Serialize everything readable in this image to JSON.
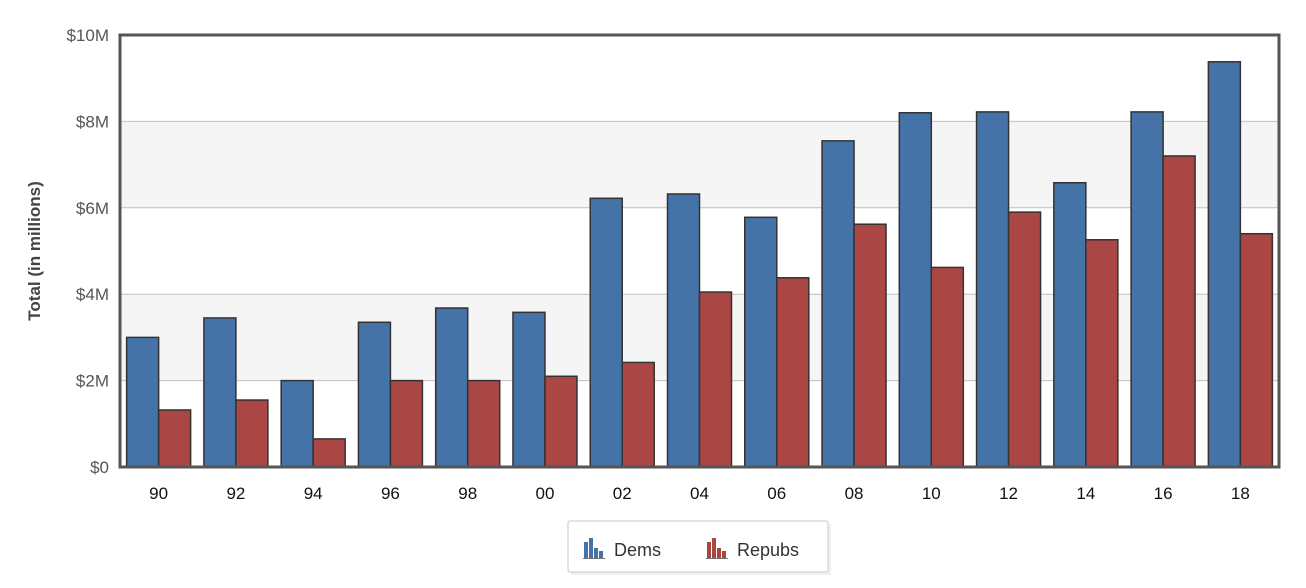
{
  "chart_data": {
    "type": "bar",
    "title": "",
    "xlabel": "",
    "ylabel": "Total (in millions)",
    "categories": [
      "90",
      "92",
      "94",
      "96",
      "98",
      "00",
      "02",
      "04",
      "06",
      "08",
      "10",
      "12",
      "14",
      "16",
      "18"
    ],
    "series": [
      {
        "name": "Dems",
        "color": "#4572a7",
        "values": [
          3.0,
          3.45,
          2.0,
          3.35,
          3.68,
          3.58,
          6.22,
          6.32,
          5.78,
          7.55,
          8.2,
          8.22,
          6.58,
          8.22,
          9.38
        ]
      },
      {
        "name": "Repubs",
        "color": "#aa4643",
        "values": [
          1.32,
          1.55,
          0.65,
          2.0,
          2.0,
          2.1,
          2.42,
          4.05,
          4.38,
          5.62,
          4.62,
          5.9,
          5.26,
          7.2,
          5.4
        ]
      }
    ],
    "ylim": [
      0,
      10
    ],
    "yticks": [
      0,
      2,
      4,
      6,
      8,
      10
    ],
    "ytick_labels": [
      "$0",
      "$2M",
      "$4M",
      "$6M",
      "$8M",
      "$10M"
    ],
    "grid": true,
    "legend": {
      "position": "bottom-center",
      "icon": "bar-chart-icon"
    }
  }
}
